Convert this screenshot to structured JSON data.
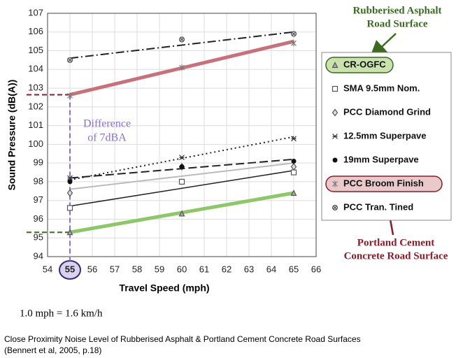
{
  "chart_data": {
    "type": "scatter",
    "x_label": "Travel Speed (mph)",
    "y_label": "Sound Pressure (dB(A))",
    "x": [
      55,
      60,
      65
    ],
    "xlim": [
      54,
      66
    ],
    "xticks": [
      54,
      55,
      56,
      57,
      58,
      59,
      60,
      61,
      62,
      63,
      64,
      65,
      66
    ],
    "ylim": [
      94,
      107
    ],
    "yticks": [
      94,
      95,
      96,
      97,
      98,
      99,
      100,
      101,
      102,
      103,
      104,
      105,
      106,
      107
    ],
    "grid": true,
    "highlight_x": 55,
    "series": [
      {
        "name": "CR-OGFC",
        "marker": "triangle",
        "color": "#555",
        "values": [
          95.3,
          96.3,
          97.4
        ],
        "trend": [
          95.3,
          97.4
        ],
        "line_color": "#8cc865",
        "line_width": 5,
        "dash": "",
        "highlight": "#c9e2ae",
        "highlight_stroke": "#3a6b1e"
      },
      {
        "name": "SMA 9.5mm Nom.",
        "marker": "square",
        "color": "#555",
        "values": [
          96.6,
          98.0,
          98.5
        ],
        "trend": [
          96.7,
          98.6
        ],
        "line_color": "#222",
        "line_width": 1.5,
        "dash": ""
      },
      {
        "name": "PCC Diamond Grind",
        "marker": "diamond",
        "color": "#555",
        "values": [
          97.4,
          98.8,
          98.8
        ],
        "trend": [
          97.6,
          99.0
        ],
        "line_color": "#bbb",
        "line_width": 2,
        "dash": ""
      },
      {
        "name": "12.5mm Superpave",
        "marker": "xstar",
        "color": "#333",
        "values": [
          98.2,
          99.3,
          100.3
        ],
        "trend": [
          98.1,
          100.4
        ],
        "line_color": "#222",
        "line_width": 2,
        "dash": "2 4"
      },
      {
        "name": "19mm Superpave",
        "marker": "dot",
        "color": "#111",
        "values": [
          98.0,
          98.8,
          99.1
        ],
        "trend": [
          98.2,
          99.2
        ],
        "line_color": "#222",
        "line_width": 2,
        "dash": "12 5"
      },
      {
        "name": "PCC Broom Finish",
        "marker": "asterisk",
        "color": "#777",
        "values": [
          102.6,
          104.1,
          105.4
        ],
        "trend": [
          102.65,
          105.5
        ],
        "line_color": "#c8707c",
        "line_width": 5,
        "dash": "",
        "highlight": "#e9c9c9",
        "highlight_stroke": "#8b1a2a"
      },
      {
        "name": "PCC Tran. Tined",
        "marker": "circlex",
        "color": "#555",
        "values": [
          104.5,
          105.6,
          105.9
        ],
        "trend": [
          104.6,
          106.0
        ],
        "line_color": "#222",
        "line_width": 2,
        "dash": "12 4 2 4"
      }
    ],
    "annotations": {
      "difference": [
        "Difference",
        "of 7dBA"
      ],
      "rubberised": [
        "Rubberised Asphalt",
        "Road Surface"
      ],
      "portland": [
        "Portland Cement",
        "Concrete Road Surface"
      ]
    },
    "footnote": "1.0 mph = 1.6 km/h",
    "caption": [
      "Close Proximity Noise Level of Rubberised Asphalt & Portland Cement Concrete Road Surfaces",
      "(Bennert et al, 2005, p.18)"
    ]
  }
}
